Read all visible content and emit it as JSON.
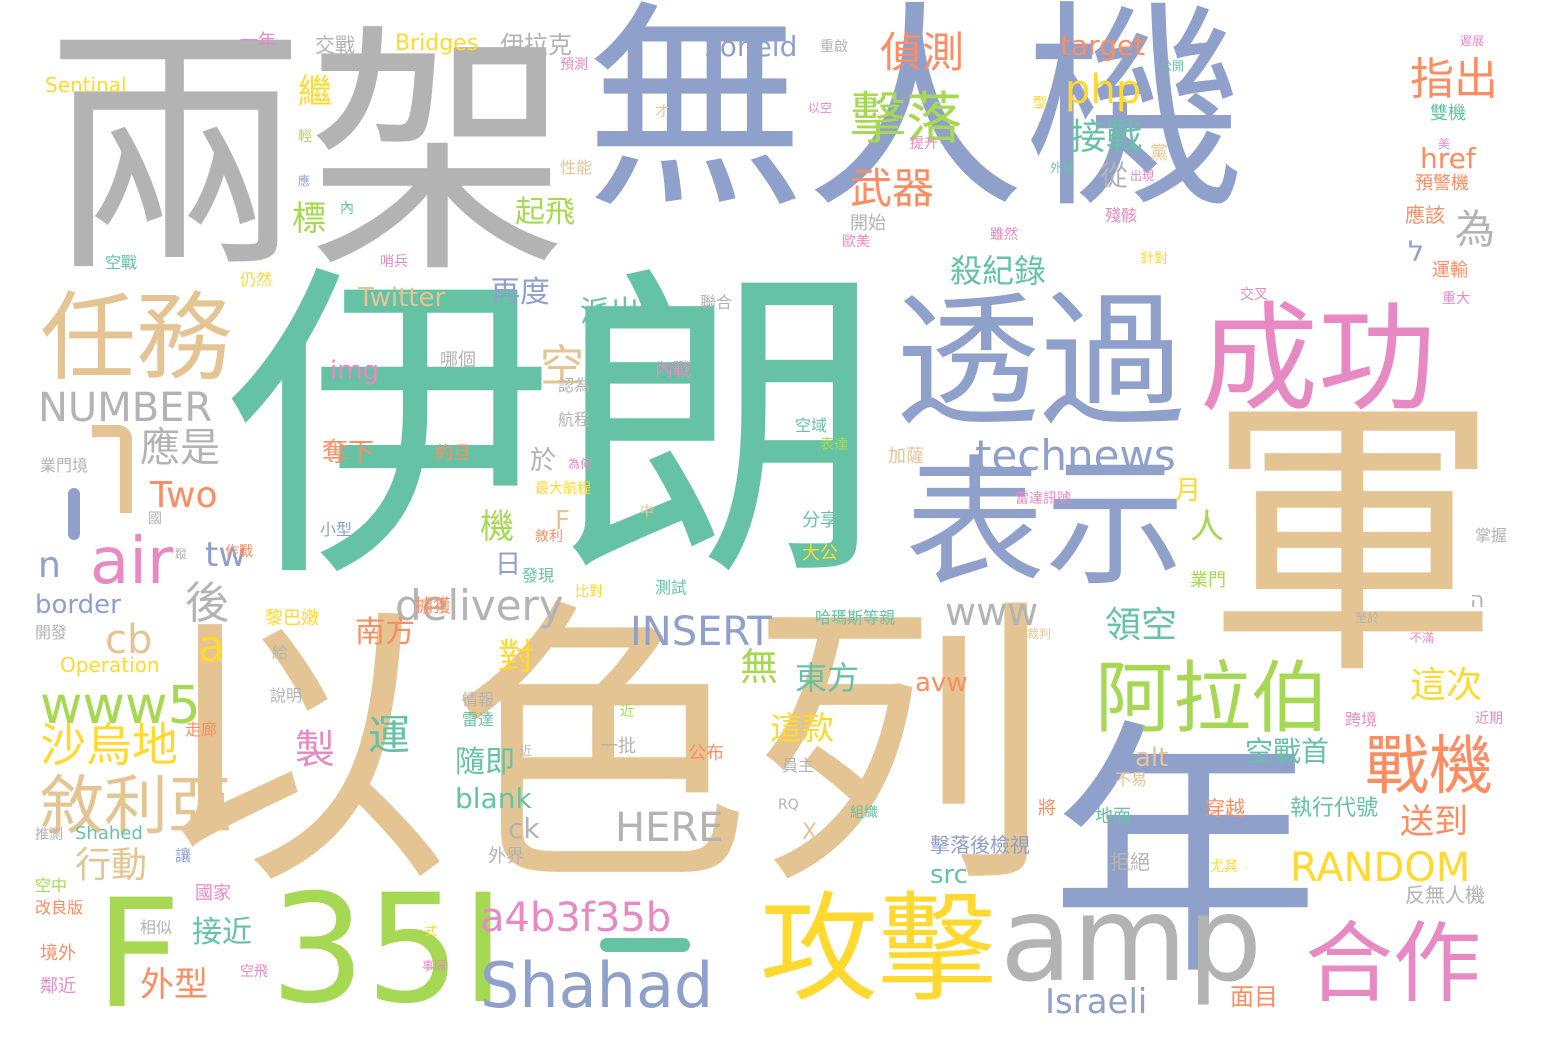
{
  "palette": [
    "#8fa0cb",
    "#66c2a5",
    "#e5c494",
    "#b3b3b3",
    "#e78ac3",
    "#a6d854",
    "#fc8d62",
    "#ffd92f"
  ],
  "words": {
    "w1": "無人機",
    "w2": "伊朗",
    "w3": "以色列",
    "w4": "兩架",
    "w5": "軍",
    "w6": "年",
    "w7": "透過",
    "w8": "成功",
    "w9": "表示",
    "w10": "任務",
    "w11": "F",
    "w12": "35I",
    "w13": "攻擊",
    "w14": "amp",
    "w15": "合作",
    "w16": "Shahad",
    "w17": "阿拉伯",
    "w18": "air",
    "w19": "戰機",
    "w20": "敘利亞",
    "w21": "www5",
    "w22": "沙烏地",
    "w23": "擊落",
    "w24": "technews",
    "w25": "delivery",
    "w26": "INSERT",
    "w27": "HERE",
    "w28": "RANDOM",
    "w29": "NUMBER",
    "w30": "a4b3f35b",
    "w31": "Israeli",
    "w32": "php",
    "w33": "接戰",
    "w34": "偵測",
    "w35": "武器",
    "w36": "起飛",
    "w37": "殺紀錄",
    "w38": "指出",
    "w39": "為",
    "w40": "Two",
    "w41": "應是",
    "w42": "空",
    "w43": "派出",
    "w44": "再度",
    "w45": "Twitter",
    "w46": "img",
    "w47": "cb",
    "w48": "tw",
    "w49": "n",
    "w50": "a",
    "w51": "後",
    "w52": "人",
    "w53": "機",
    "w54": "領空",
    "w55": "空戰首",
    "w56": "送到",
    "w57": "這次",
    "w58": "執行代號",
    "w59": "行動",
    "w60": "外型",
    "w61": "接近",
    "w62": "奪下",
    "w63": "南方",
    "w64": "對",
    "w65": "製",
    "w66": "運",
    "w67": "東方",
    "w68": "這款",
    "w69": "隨即",
    "w70": "blank",
    "w71": "ck",
    "w72": "src",
    "w73": "alt",
    "w74": "avw",
    "w75": "www",
    "w76": "無",
    "w77": "border",
    "w78": "Operation",
    "w79": "zoneid",
    "w80": "target",
    "w81": "href",
    "w82": "Bridges",
    "w83": "伊拉克",
    "w84": "Sentinal",
    "w85": "交戰",
    "w86": "一年",
    "w87": "繼",
    "w88": "標",
    "w89": "從",
    "w90": "日",
    "w91": "於",
    "w92": "月",
    "w93": "F",
    "w94": "面目",
    "w95": "穿越",
    "w96": "地面",
    "w97": "拒絕",
    "w98": "反無人機",
    "w99": "業門境",
    "w100": "空戰",
    "w101": "仍然",
    "w102": "聯合",
    "w103": "哪個",
    "w104": "內戰",
    "w105": "認為",
    "w106": "航程",
    "w107": "彈擊落",
    "w108": "空域",
    "w109": "表達",
    "w110": "加薩",
    "w111": "雷達訊號",
    "w112": "約旦",
    "w113": "為何",
    "w114": "最大航程",
    "w115": "敘利",
    "w116": "小型",
    "w117": "發現",
    "w118": "分享",
    "w119": "大公",
    "w120": "測試",
    "w121": "比對",
    "w122": "擄獲",
    "w123": "黎巴嫩",
    "w124": "給",
    "w125": "開發",
    "w126": "說明",
    "w127": "情報",
    "w128": "雷達",
    "w129": "一批",
    "w130": "公布",
    "w131": "走廊",
    "w132": "哈瑪斯等親",
    "w133": "核裁判",
    "w134": "業門",
    "w135": "跨境",
    "w136": "不易",
    "w137": "將",
    "w138": "組織",
    "w139": "擊落後檢視",
    "w140": "外界",
    "w141": "推測",
    "w142": "Shahed",
    "w143": "讓",
    "w144": "國家",
    "w145": "空中",
    "w146": "改良版",
    "w147": "相似",
    "w148": "式",
    "w149": "境外",
    "w150": "空飛",
    "w151": "鄰近",
    "w152": "事隔",
    "w153": "尤其",
    "w154": "雙機",
    "w155": "預警機",
    "w156": "應該",
    "w157": "運輸",
    "w158": "重大",
    "w159": "交叉",
    "w160": "針對",
    "w161": "殘骸",
    "w162": "雖然",
    "w163": "歐美",
    "w164": "開始",
    "w165": "哨兵",
    "w166": "性能",
    "w167": "預測",
    "w168": "重啟",
    "w169": "公開",
    "w170": "遲展",
    "w171": "提升",
    "w172": "外媒",
    "w173": "出現",
    "w174": "黨",
    "w175": "以空",
    "w176": "型",
    "w177": "國",
    "w178": "才",
    "w179": "內",
    "w180": "輕",
    "w181": "應",
    "w182": "作戰",
    "w183": "中",
    "w184": "至於",
    "w185": "不滿",
    "w186": "掌握",
    "w187": "近期",
    "w188": "員主",
    "w189": "ה",
    "w190": "ל",
    "w191": "可能",
    "w192": "近",
    "w193": "RQ",
    "w194": "X",
    "w195": "蹤",
    "w196": "美"
  }
}
